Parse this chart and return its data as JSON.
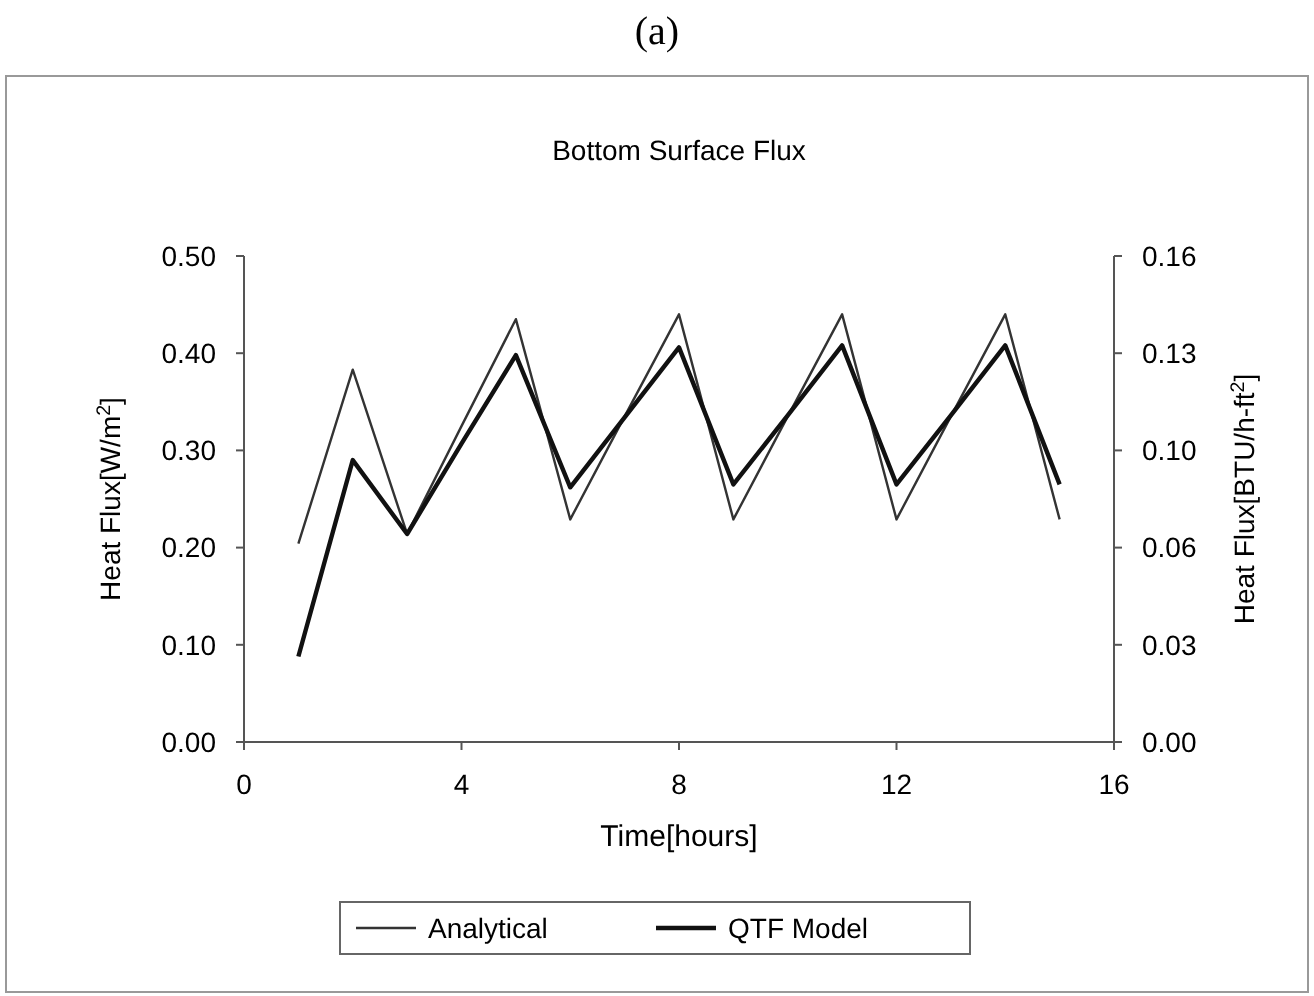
{
  "chart_data": {
    "type": "line",
    "title": "Bottom Surface Flux",
    "annotations": [
      "(a)"
    ],
    "xlabel": "Time[hours]",
    "ylabel": "Heat Flux[W/m$^{2}$]",
    "y2label": "Heat Flux[BTU/h-ft$^{2}$]",
    "x": [
      1,
      2,
      3,
      4,
      5,
      6,
      7,
      8,
      9,
      10,
      11,
      12,
      13,
      14,
      15
    ],
    "series": [
      {
        "name": "Analytical",
        "color": "#333333",
        "values": [
          0.204,
          0.383,
          0.214,
          0.325,
          0.435,
          0.229,
          0.335,
          0.44,
          0.229,
          0.335,
          0.44,
          0.229,
          0.335,
          0.44,
          0.229
        ]
      },
      {
        "name": "QTF Model",
        "color": "#111111",
        "values": [
          0.088,
          0.29,
          0.214,
          0.307,
          0.398,
          0.262,
          0.334,
          0.406,
          0.265,
          0.336,
          0.408,
          0.265,
          0.336,
          0.408,
          0.265
        ]
      }
    ],
    "xlim": [
      0,
      16
    ],
    "xticks": [
      0,
      4,
      8,
      12,
      16
    ],
    "ylim": [
      0,
      0.5
    ],
    "yticks": [
      {
        "value": 0,
        "label": "0.00"
      },
      {
        "value": 0.1,
        "label": "0.10"
      },
      {
        "value": 0.2,
        "label": "0.20"
      },
      {
        "value": 0.3,
        "label": "0.30"
      },
      {
        "value": 0.4,
        "label": "0.40"
      },
      {
        "value": 0.5,
        "label": "0.50"
      }
    ],
    "y2lim": [
      0,
      0.16
    ],
    "y2ticks": [
      {
        "value": 0,
        "label": "0.00"
      },
      {
        "value": 0.032,
        "label": "0.03"
      },
      {
        "value": 0.064,
        "label": "0.06"
      },
      {
        "value": 0.096,
        "label": "0.10"
      },
      {
        "value": 0.128,
        "label": "0.13"
      },
      {
        "value": 0.16,
        "label": "0.16"
      }
    ],
    "grid": false,
    "legend": "bottom",
    "marker": "none",
    "line_style": "solid"
  }
}
